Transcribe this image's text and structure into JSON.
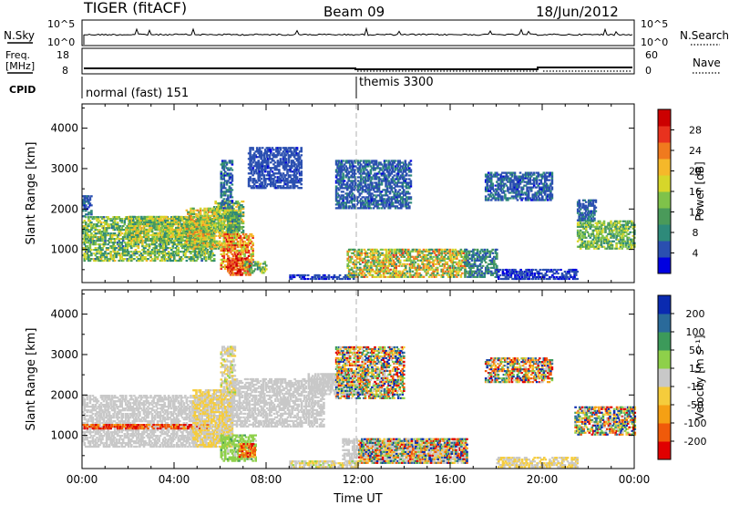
{
  "header": {
    "station": "TIGER (fitACF)",
    "beam": "Beam 09",
    "date": "18/Jun/2012"
  },
  "param_strip": {
    "nsky_label": "N.Sky",
    "nsky_ticks": [
      "10^5",
      "10^0"
    ],
    "nsearch_label": "N.Search",
    "nsearch_ticks": [
      "10^5",
      "10^0"
    ],
    "freq_label": "Freq.",
    "freq_unit": "[MHz]",
    "freq_ticks": [
      "18",
      "8"
    ],
    "nave_label": "Nave",
    "nave_ticks": [
      "60",
      "0"
    ],
    "cpid_label": "CPID",
    "cpid_segments": [
      {
        "label": "normal (fast) 151",
        "start_hour": 0,
        "end_hour": 12
      },
      {
        "label": "themis 3300",
        "start_hour": 12,
        "end_hour": 24
      }
    ]
  },
  "chart_data": [
    {
      "type": "heatmap",
      "parameter": "power",
      "ylabel": "Slant Range [km]",
      "ylim": [
        180,
        4600
      ],
      "yticks": [
        1000,
        2000,
        3000,
        4000
      ],
      "xlim": [
        0,
        24
      ],
      "x_tick_labels": [
        "00:00",
        "04:00",
        "08:00",
        "12:00",
        "16:00",
        "20:00",
        "00:00"
      ],
      "colorbar_label": "Power [dB]",
      "colorbar_ticks": [
        "4",
        "8",
        "12",
        "16",
        "20",
        "24",
        "28"
      ],
      "colorbar_colors": [
        "#0000e0",
        "#2a4fb0",
        "#2e8a7a",
        "#4a9a5a",
        "#7fc24a",
        "#d6d62a",
        "#f5b82a",
        "#f07a1e",
        "#e8321e",
        "#cc0000"
      ],
      "range_min": 0,
      "range_max": 32,
      "regions": [
        {
          "t0": 0.0,
          "t1": 5.7,
          "r0": 700,
          "r1": 1800,
          "v0": 6,
          "v1": 20
        },
        {
          "t0": 0.0,
          "t1": 0.4,
          "r0": 1800,
          "r1": 2300,
          "v0": 3,
          "v1": 8
        },
        {
          "t0": 2.0,
          "t1": 5.6,
          "r0": 1200,
          "r1": 1800,
          "v0": 8,
          "v1": 22
        },
        {
          "t0": 4.5,
          "t1": 6.7,
          "r0": 1000,
          "r1": 2000,
          "v0": 10,
          "v1": 24
        },
        {
          "t0": 5.7,
          "t1": 7.0,
          "r0": 1400,
          "r1": 2200,
          "v0": 8,
          "v1": 22
        },
        {
          "t0": 6.0,
          "t1": 7.4,
          "r0": 500,
          "r1": 1400,
          "v0": 14,
          "v1": 30
        },
        {
          "t0": 6.3,
          "t1": 7.3,
          "r0": 350,
          "r1": 800,
          "v0": 22,
          "v1": 32
        },
        {
          "t0": 7.0,
          "t1": 8.0,
          "r0": 400,
          "r1": 700,
          "v0": 6,
          "v1": 20
        },
        {
          "t0": 6.0,
          "t1": 6.5,
          "r0": 2000,
          "r1": 3200,
          "v0": 3,
          "v1": 10
        },
        {
          "t0": 6.3,
          "t1": 6.8,
          "r0": 1400,
          "r1": 1900,
          "v0": 6,
          "v1": 14
        },
        {
          "t0": 7.2,
          "t1": 9.5,
          "r0": 2500,
          "r1": 3500,
          "v0": 3,
          "v1": 6
        },
        {
          "t0": 9.0,
          "t1": 11.8,
          "r0": 250,
          "r1": 380,
          "v0": 2,
          "v1": 6
        },
        {
          "t0": 11.5,
          "t1": 16.7,
          "r0": 300,
          "r1": 1000,
          "v0": 8,
          "v1": 26
        },
        {
          "t0": 16.6,
          "t1": 18.0,
          "r0": 300,
          "r1": 1000,
          "v0": 4,
          "v1": 12
        },
        {
          "t0": 11.0,
          "t1": 14.3,
          "r0": 2000,
          "r1": 3200,
          "v0": 3,
          "v1": 8
        },
        {
          "t0": 17.5,
          "t1": 20.4,
          "r0": 2200,
          "r1": 2900,
          "v0": 3,
          "v1": 8
        },
        {
          "t0": 21.5,
          "t1": 24.0,
          "r0": 1000,
          "r1": 1700,
          "v0": 8,
          "v1": 18
        },
        {
          "t0": 21.5,
          "t1": 22.3,
          "r0": 1700,
          "r1": 2200,
          "v0": 3,
          "v1": 8
        },
        {
          "t0": 18.0,
          "t1": 21.5,
          "r0": 250,
          "r1": 500,
          "v0": 2,
          "v1": 6
        }
      ]
    },
    {
      "type": "heatmap",
      "parameter": "velocity",
      "ylabel": "Slant Range [km]",
      "ylim": [
        180,
        4600
      ],
      "yticks": [
        1000,
        2000,
        3000,
        4000
      ],
      "xlim": [
        0,
        24
      ],
      "x_tick_labels": [
        "00:00",
        "04:00",
        "08:00",
        "12:00",
        "16:00",
        "20:00",
        "00:00"
      ],
      "xlabel": "Time UT",
      "colorbar_label": "Velocity [m s⁻¹]",
      "colorbar_ticks": [
        "-200",
        "-100",
        "-50",
        "-15",
        "15",
        "50",
        "100",
        "200"
      ],
      "colorbar_colors": [
        "#e00000",
        "#f05a0a",
        "#f5a014",
        "#f5cc3c",
        "#c8c8c8",
        "#8ed04a",
        "#3c9a5a",
        "#2a6a9a",
        "#0a2ab0"
      ],
      "range_min": -250,
      "range_max": 250,
      "regions": [
        {
          "t0": 0.0,
          "t1": 6.5,
          "r0": 700,
          "r1": 2000,
          "v0": -20,
          "v1": 12
        },
        {
          "t0": 0.0,
          "t1": 5.5,
          "r0": 1150,
          "r1": 1250,
          "v0": -240,
          "v1": -120
        },
        {
          "t0": 4.8,
          "t1": 6.5,
          "r0": 700,
          "r1": 2100,
          "v0": -70,
          "v1": 0
        },
        {
          "t0": 6.5,
          "t1": 10.5,
          "r0": 1200,
          "r1": 2400,
          "v0": -20,
          "v1": 12
        },
        {
          "t0": 6.0,
          "t1": 7.5,
          "r0": 350,
          "r1": 1000,
          "v0": 20,
          "v1": 90
        },
        {
          "t0": 6.8,
          "t1": 7.5,
          "r0": 450,
          "r1": 800,
          "v0": -240,
          "v1": -60
        },
        {
          "t0": 6.0,
          "t1": 6.6,
          "r0": 2000,
          "r1": 3200,
          "v0": -60,
          "v1": 40
        },
        {
          "t0": 9.8,
          "t1": 12.5,
          "r0": 2000,
          "r1": 2500,
          "v0": -20,
          "v1": 12
        },
        {
          "t0": 11.0,
          "t1": 14.0,
          "r0": 1900,
          "r1": 3200,
          "v0": -240,
          "v1": 240
        },
        {
          "t0": 11.3,
          "t1": 16.7,
          "r0": 300,
          "r1": 900,
          "v0": -20,
          "v1": 12
        },
        {
          "t0": 12.0,
          "t1": 16.7,
          "r0": 300,
          "r1": 900,
          "v0": -250,
          "v1": 250
        },
        {
          "t0": 17.5,
          "t1": 20.4,
          "r0": 2300,
          "r1": 2900,
          "v0": -250,
          "v1": 250
        },
        {
          "t0": 21.4,
          "t1": 24.0,
          "r0": 1000,
          "r1": 1700,
          "v0": -250,
          "v1": 250
        },
        {
          "t0": 9.0,
          "t1": 12.0,
          "r0": 200,
          "r1": 380,
          "v0": -60,
          "v1": 40
        },
        {
          "t0": 18.0,
          "t1": 21.5,
          "r0": 200,
          "r1": 450,
          "v0": -70,
          "v1": 12
        }
      ]
    }
  ]
}
